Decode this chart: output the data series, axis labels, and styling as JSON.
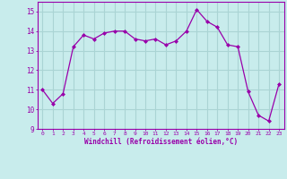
{
  "x": [
    0,
    1,
    2,
    3,
    4,
    5,
    6,
    7,
    8,
    9,
    10,
    11,
    12,
    13,
    14,
    15,
    16,
    17,
    18,
    19,
    20,
    21,
    22,
    23
  ],
  "y": [
    11.0,
    10.3,
    10.8,
    13.2,
    13.8,
    13.6,
    13.9,
    14.0,
    14.0,
    13.6,
    13.5,
    13.6,
    13.3,
    13.5,
    14.0,
    15.1,
    14.5,
    14.2,
    13.3,
    13.2,
    10.9,
    9.7,
    9.4,
    11.3
  ],
  "line_color": "#9900aa",
  "marker": "D",
  "marker_size": 2,
  "bg_color": "#c8ecec",
  "grid_color": "#aad4d4",
  "xlabel": "Windchill (Refroidissement éolien,°C)",
  "xlabel_color": "#9900aa",
  "tick_color": "#9900aa",
  "ylim": [
    9,
    15.5
  ],
  "yticks": [
    9,
    10,
    11,
    12,
    13,
    14,
    15
  ],
  "xlim": [
    -0.5,
    23.5
  ],
  "xticks": [
    0,
    1,
    2,
    3,
    4,
    5,
    6,
    7,
    8,
    9,
    10,
    11,
    12,
    13,
    14,
    15,
    16,
    17,
    18,
    19,
    20,
    21,
    22,
    23
  ],
  "spine_color": "#9900aa"
}
